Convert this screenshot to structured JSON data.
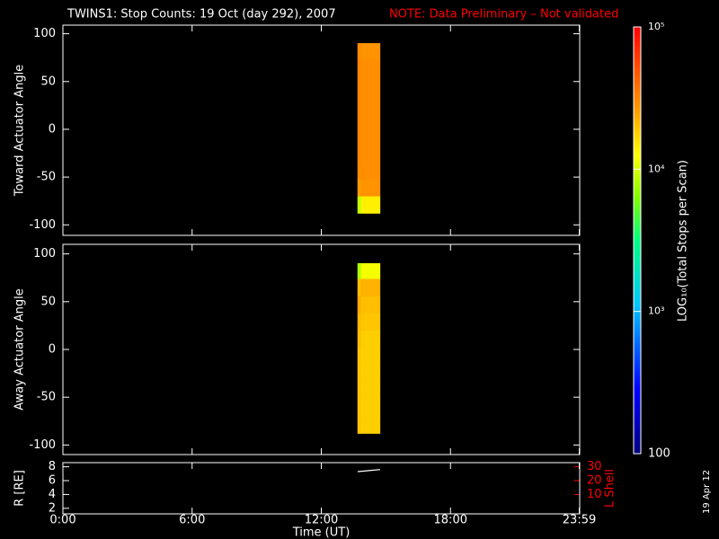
{
  "title": "TWINS1: Stop Counts: 19 Oct (day 292), 2007",
  "note": "NOTE: Data Preliminary – Not validated",
  "date_stamp": "19 Apr 12",
  "colorbar": {
    "label": "LOG₁₀(Total Stops per Scan)",
    "lim": [
      100,
      100000
    ],
    "log": true,
    "ticks": [
      {
        "value": 100000,
        "label": "10⁵"
      },
      {
        "value": 10000,
        "label": "10⁴"
      },
      {
        "value": 1000,
        "label": "10³"
      },
      100
    ]
  },
  "chart_data": [
    {
      "type": "heatmap",
      "ylabel": "Toward Actuator Angle",
      "ylim": [
        -111,
        109
      ],
      "yticks": [
        -100,
        -50,
        0,
        50,
        100
      ],
      "x_edges": [
        13.69,
        13.85,
        14.73
      ],
      "y_edges": [
        -88,
        -70,
        -52,
        -34,
        -16,
        2,
        20,
        38,
        56,
        74,
        90
      ],
      "z": [
        [
          9000,
          26000,
          30000,
          31000,
          31000,
          31000,
          31000,
          31000,
          31000,
          30000
        ],
        [
          14000,
          28000,
          29000,
          29000,
          29000,
          29000,
          29000,
          29000,
          29000,
          28000
        ]
      ]
    },
    {
      "type": "heatmap",
      "ylabel": "Away Actuator Angle",
      "ylim": [
        -110,
        110
      ],
      "yticks": [
        -100,
        -50,
        0,
        50,
        100
      ],
      "x_edges": [
        13.69,
        13.85,
        14.73
      ],
      "y_edges": [
        -88,
        -70,
        -52,
        -34,
        -16,
        2,
        20,
        38,
        56,
        74,
        90
      ],
      "z": [
        [
          19000,
          19000,
          19000,
          19000,
          19000,
          20000,
          21000,
          23000,
          20000,
          8000
        ],
        [
          18000,
          18000,
          18000,
          18000,
          18000,
          18000,
          19000,
          20000,
          22000,
          12000
        ]
      ]
    },
    {
      "type": "line",
      "ylabel": "R [RE]",
      "y2label": "L Shell",
      "xlabel": "Time (UT)",
      "xlim": [
        0,
        24
      ],
      "xticks": [
        {
          "value": 0,
          "label": "0:00"
        },
        {
          "value": 6,
          "label": "6:00"
        },
        {
          "value": 12,
          "label": "12:00"
        },
        {
          "value": 18,
          "label": "18:00"
        },
        {
          "value": 23.98,
          "label": "23:59"
        }
      ],
      "ylim": [
        1.2,
        8.6
      ],
      "yticks": [
        2,
        4,
        6,
        8
      ],
      "y2lim": [
        -4,
        33
      ],
      "y2ticks": [
        10,
        20,
        30
      ],
      "y2color": "#ff0000",
      "x": [
        13.69,
        14.2,
        14.73
      ],
      "series": [
        {
          "color": "#ffffff",
          "values": [
            7.3,
            7.45,
            7.6
          ]
        }
      ]
    }
  ]
}
